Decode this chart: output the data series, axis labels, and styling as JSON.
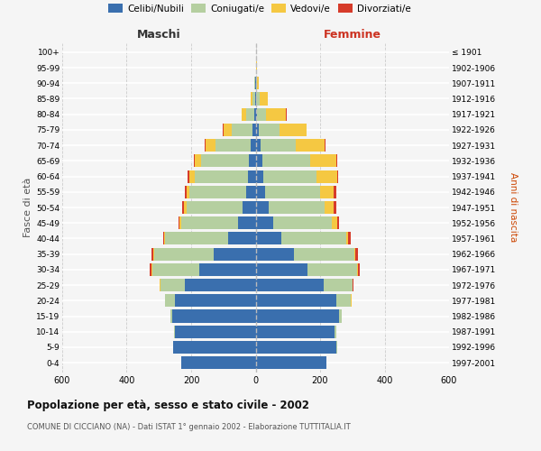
{
  "age_groups": [
    "0-4",
    "5-9",
    "10-14",
    "15-19",
    "20-24",
    "25-29",
    "30-34",
    "35-39",
    "40-44",
    "45-49",
    "50-54",
    "55-59",
    "60-64",
    "65-69",
    "70-74",
    "75-79",
    "80-84",
    "85-89",
    "90-94",
    "95-99",
    "100+"
  ],
  "birth_years": [
    "1997-2001",
    "1992-1996",
    "1987-1991",
    "1982-1986",
    "1977-1981",
    "1972-1976",
    "1967-1971",
    "1962-1966",
    "1957-1961",
    "1952-1956",
    "1947-1951",
    "1942-1946",
    "1937-1941",
    "1932-1936",
    "1927-1931",
    "1922-1926",
    "1917-1921",
    "1912-1916",
    "1907-1911",
    "1902-1906",
    "≤ 1901"
  ],
  "maschi_celibi": [
    230,
    255,
    250,
    260,
    250,
    220,
    175,
    130,
    85,
    55,
    40,
    30,
    25,
    20,
    15,
    10,
    4,
    2,
    1,
    0,
    0
  ],
  "maschi_coniugati": [
    0,
    0,
    3,
    5,
    30,
    75,
    145,
    185,
    195,
    175,
    175,
    175,
    165,
    148,
    110,
    65,
    25,
    8,
    2,
    0,
    0
  ],
  "maschi_vedovi": [
    0,
    0,
    0,
    0,
    0,
    2,
    2,
    2,
    3,
    5,
    8,
    10,
    15,
    20,
    30,
    25,
    15,
    4,
    1,
    0,
    0
  ],
  "maschi_divorziati": [
    0,
    0,
    0,
    0,
    1,
    2,
    8,
    5,
    3,
    3,
    5,
    5,
    5,
    3,
    3,
    2,
    0,
    0,
    0,
    0,
    0
  ],
  "femmine_nubili": [
    220,
    250,
    245,
    260,
    250,
    210,
    160,
    120,
    80,
    55,
    40,
    30,
    25,
    20,
    15,
    10,
    3,
    2,
    1,
    1,
    0
  ],
  "femmine_coniugate": [
    0,
    2,
    5,
    8,
    45,
    90,
    155,
    185,
    200,
    182,
    175,
    170,
    165,
    148,
    110,
    65,
    30,
    10,
    3,
    0,
    0
  ],
  "femmine_vedove": [
    0,
    0,
    0,
    0,
    2,
    2,
    3,
    5,
    8,
    16,
    28,
    42,
    62,
    82,
    88,
    82,
    62,
    25,
    6,
    2,
    0
  ],
  "femmine_divorziate": [
    0,
    0,
    0,
    0,
    1,
    2,
    5,
    8,
    8,
    5,
    8,
    8,
    5,
    3,
    3,
    2,
    1,
    0,
    0,
    0,
    0
  ],
  "color_celibi": "#3a6fae",
  "color_coniugati": "#b5cfa0",
  "color_vedovi": "#f5c842",
  "color_divorziati": "#d63b2a",
  "title": "Popolazione per età, sesso e stato civile - 2002",
  "subtitle": "COMUNE DI CICCIANO (NA) - Dati ISTAT 1° gennaio 2002 - Elaborazione TUTTITALIA.IT",
  "label_maschi": "Maschi",
  "label_femmine": "Femmine",
  "ylabel_left": "Fasce di età",
  "ylabel_right": "Anni di nascita",
  "xlim": 600,
  "bg_color": "#f5f5f5",
  "bar_height": 0.82,
  "legend_labels": [
    "Celibi/Nubili",
    "Coniugati/e",
    "Vedovi/e",
    "Divorziati/e"
  ]
}
